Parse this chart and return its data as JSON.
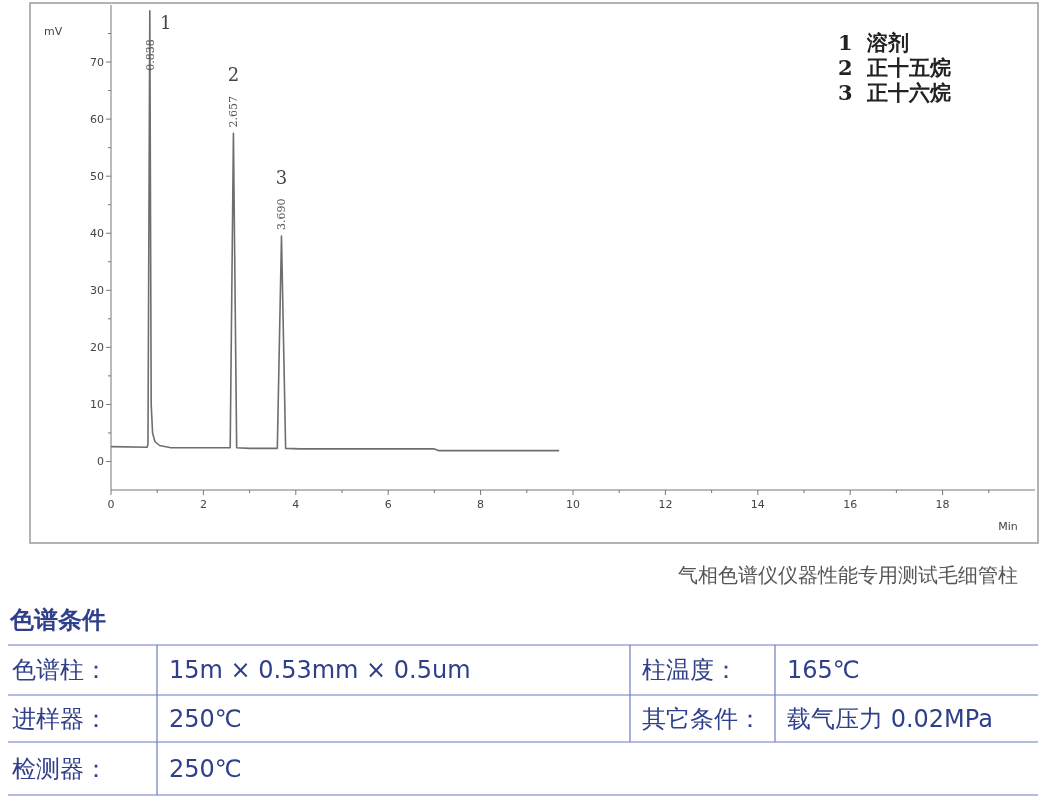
{
  "chart_data": {
    "type": "line",
    "ylabel": "mV",
    "xlabel": "Min",
    "x": [
      0,
      0.78,
      0.8,
      0.84,
      0.87,
      0.9,
      0.95,
      1.05,
      1.3,
      2.0,
      2.58,
      2.65,
      2.72,
      3.0,
      3.6,
      3.69,
      3.78,
      4.1,
      7.0,
      7.1,
      9.7
    ],
    "series": [
      {
        "color": "#6e6e6e",
        "values": [
          2.6,
          2.5,
          3,
          79,
          10,
          5,
          3.5,
          2.8,
          2.4,
          2.4,
          2.4,
          57.5,
          2.4,
          2.3,
          2.3,
          39.5,
          2.3,
          2.2,
          2.2,
          1.9,
          1.9
        ]
      }
    ],
    "xlim": [
      0,
      20
    ],
    "ylim": [
      -5,
      80
    ],
    "xticks": [
      0,
      {
        "value": 1,
        "label": null
      },
      2,
      {
        "value": 3,
        "label": null
      },
      4,
      {
        "value": 5,
        "label": null
      },
      6,
      {
        "value": 7,
        "label": null
      },
      8,
      {
        "value": 9,
        "label": null
      },
      10,
      {
        "value": 11,
        "label": null
      },
      12,
      {
        "value": 13,
        "label": null
      },
      14,
      {
        "value": 15,
        "label": null
      },
      16,
      {
        "value": 17,
        "label": null
      },
      18,
      {
        "value": 19,
        "label": null
      }
    ],
    "yticks": [
      0,
      {
        "value": 5,
        "label": null
      },
      10,
      {
        "value": 15,
        "label": null
      },
      20,
      {
        "value": 25,
        "label": null
      },
      30,
      {
        "value": 35,
        "label": null
      },
      40,
      {
        "value": 45,
        "label": null
      },
      50,
      {
        "value": 55,
        "label": null
      },
      60,
      {
        "value": 65,
        "label": null
      },
      70,
      {
        "value": 75,
        "label": null
      }
    ],
    "grid": false,
    "annotations": [
      "1",
      "2",
      "3",
      {
        "text": "0.838",
        "x": 0.84,
        "y": 79
      },
      {
        "text": "2.657",
        "x": 2.65,
        "y": 57.5
      },
      {
        "text": "3.690",
        "x": 3.69,
        "y": 39.5
      },
      "1  溶剂",
      "2  正十五烷",
      "3  正十六烷",
      "气相色谱仪仪器性能专用测试毛细管柱",
      "色谱条件",
      "色谱柱：",
      "15m × 0.53mm × 0.5um",
      "柱温度：",
      "165℃",
      "进样器：",
      "250℃",
      "其它条件：",
      "载气压力 0.02MPa",
      "检测器：",
      "250℃"
    ]
  }
}
